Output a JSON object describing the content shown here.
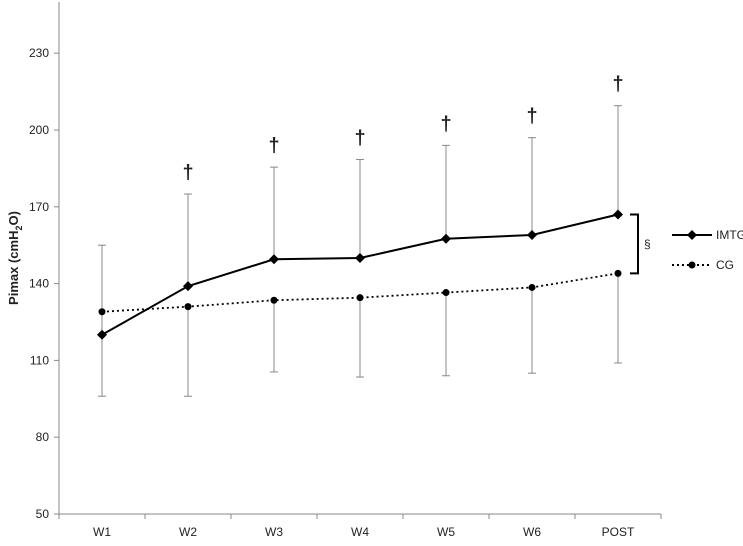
{
  "chart_data": {
    "type": "line",
    "y_label": {
      "parts": [
        "Pimax (cmH",
        "2",
        "O)"
      ]
    },
    "categories": [
      "W1",
      "W2",
      "W3",
      "W4",
      "W5",
      "W6",
      "POST"
    ],
    "series": [
      {
        "name": "IMTG",
        "color": "#000000",
        "style": "solid",
        "marker": "diamond",
        "error_direction": "up",
        "values": [
          120,
          139,
          149.5,
          150,
          157.5,
          159,
          167
        ],
        "error": [
          35,
          36,
          36,
          38.5,
          36.5,
          38,
          42.5
        ]
      },
      {
        "name": "CG",
        "color": "#000000",
        "style": "dotted",
        "marker": "circle",
        "error_direction": "down",
        "values": [
          129,
          131,
          133.5,
          134.5,
          136.5,
          138.5,
          144
        ],
        "error": [
          33,
          35,
          28,
          31,
          32.5,
          33.5,
          35
        ]
      }
    ],
    "ylim": [
      50,
      250
    ],
    "yticks": [
      50,
      80,
      110,
      140,
      170,
      200,
      230
    ],
    "annotations": [
      {
        "text": "†",
        "x": "W2"
      },
      {
        "text": "†",
        "x": "W3"
      },
      {
        "text": "†",
        "x": "W4"
      },
      {
        "text": "†",
        "x": "W5"
      },
      {
        "text": "†",
        "x": "W6"
      },
      {
        "text": "†",
        "x": "POST"
      }
    ],
    "bracket_label": "§"
  }
}
